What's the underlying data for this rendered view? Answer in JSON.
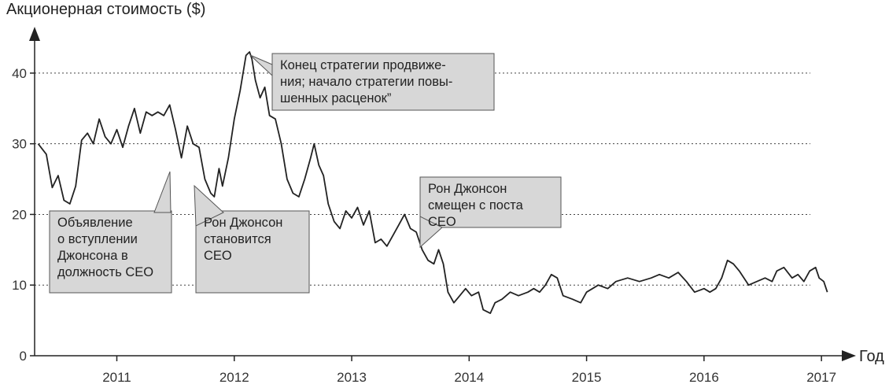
{
  "chart_data": {
    "type": "line",
    "ylabel": "Акционерная стоимость ($)",
    "xlabel": "Год",
    "xlim": [
      2010.3,
      2017.2
    ],
    "ylim": [
      0,
      45
    ],
    "x_ticks": [
      2011,
      2012,
      2013,
      2014,
      2015,
      2016,
      2017
    ],
    "y_ticks": [
      0,
      10,
      20,
      30,
      40
    ],
    "grid": "horizontal-dotted",
    "series": [
      {
        "color": "#222222",
        "points": [
          [
            2010.33,
            30.0
          ],
          [
            2010.4,
            28.5
          ],
          [
            2010.45,
            23.8
          ],
          [
            2010.5,
            25.5
          ],
          [
            2010.55,
            22.0
          ],
          [
            2010.6,
            21.5
          ],
          [
            2010.65,
            24.0
          ],
          [
            2010.7,
            30.5
          ],
          [
            2010.75,
            31.5
          ],
          [
            2010.8,
            30.0
          ],
          [
            2010.85,
            33.5
          ],
          [
            2010.9,
            31.0
          ],
          [
            2010.95,
            30.0
          ],
          [
            2011.0,
            32.0
          ],
          [
            2011.05,
            29.5
          ],
          [
            2011.1,
            32.5
          ],
          [
            2011.15,
            35.0
          ],
          [
            2011.2,
            31.5
          ],
          [
            2011.25,
            34.5
          ],
          [
            2011.3,
            34.0
          ],
          [
            2011.35,
            34.5
          ],
          [
            2011.4,
            34.0
          ],
          [
            2011.45,
            35.5
          ],
          [
            2011.5,
            32.0
          ],
          [
            2011.55,
            28.0
          ],
          [
            2011.6,
            32.5
          ],
          [
            2011.65,
            30.0
          ],
          [
            2011.7,
            29.5
          ],
          [
            2011.75,
            25.0
          ],
          [
            2011.8,
            23.0
          ],
          [
            2011.83,
            22.5
          ],
          [
            2011.87,
            26.5
          ],
          [
            2011.9,
            24.0
          ],
          [
            2011.95,
            28.0
          ],
          [
            2012.0,
            33.5
          ],
          [
            2012.05,
            37.5
          ],
          [
            2012.08,
            40.5
          ],
          [
            2012.1,
            42.5
          ],
          [
            2012.13,
            43.0
          ],
          [
            2012.15,
            42.0
          ],
          [
            2012.18,
            39.0
          ],
          [
            2012.22,
            36.5
          ],
          [
            2012.26,
            38.0
          ],
          [
            2012.3,
            34.0
          ],
          [
            2012.35,
            33.5
          ],
          [
            2012.4,
            30.0
          ],
          [
            2012.45,
            25.0
          ],
          [
            2012.5,
            23.0
          ],
          [
            2012.55,
            22.5
          ],
          [
            2012.6,
            25.0
          ],
          [
            2012.65,
            28.0
          ],
          [
            2012.68,
            30.0
          ],
          [
            2012.72,
            27.0
          ],
          [
            2012.76,
            25.5
          ],
          [
            2012.8,
            21.5
          ],
          [
            2012.85,
            19.0
          ],
          [
            2012.9,
            18.0
          ],
          [
            2012.95,
            20.5
          ],
          [
            2013.0,
            19.5
          ],
          [
            2013.05,
            21.0
          ],
          [
            2013.1,
            18.5
          ],
          [
            2013.15,
            20.5
          ],
          [
            2013.2,
            16.0
          ],
          [
            2013.25,
            16.5
          ],
          [
            2013.3,
            15.5
          ],
          [
            2013.35,
            17.0
          ],
          [
            2013.4,
            18.5
          ],
          [
            2013.45,
            20.0
          ],
          [
            2013.5,
            18.0
          ],
          [
            2013.55,
            17.5
          ],
          [
            2013.6,
            15.0
          ],
          [
            2013.65,
            13.5
          ],
          [
            2013.7,
            13.0
          ],
          [
            2013.74,
            15.0
          ],
          [
            2013.78,
            13.0
          ],
          [
            2013.82,
            9.0
          ],
          [
            2013.87,
            7.5
          ],
          [
            2013.92,
            8.5
          ],
          [
            2013.97,
            9.5
          ],
          [
            2014.02,
            8.5
          ],
          [
            2014.08,
            9.0
          ],
          [
            2014.12,
            6.5
          ],
          [
            2014.18,
            6.0
          ],
          [
            2014.22,
            7.5
          ],
          [
            2014.28,
            8.0
          ],
          [
            2014.35,
            9.0
          ],
          [
            2014.42,
            8.5
          ],
          [
            2014.5,
            9.0
          ],
          [
            2014.55,
            9.5
          ],
          [
            2014.6,
            9.0
          ],
          [
            2014.65,
            10.0
          ],
          [
            2014.7,
            11.5
          ],
          [
            2014.75,
            11.0
          ],
          [
            2014.8,
            8.5
          ],
          [
            2014.88,
            8.0
          ],
          [
            2014.95,
            7.5
          ],
          [
            2015.0,
            9.0
          ],
          [
            2015.05,
            9.5
          ],
          [
            2015.1,
            10.0
          ],
          [
            2015.18,
            9.5
          ],
          [
            2015.25,
            10.5
          ],
          [
            2015.35,
            11.0
          ],
          [
            2015.45,
            10.5
          ],
          [
            2015.55,
            11.0
          ],
          [
            2015.62,
            11.5
          ],
          [
            2015.7,
            11.0
          ],
          [
            2015.78,
            11.8
          ],
          [
            2015.85,
            10.5
          ],
          [
            2015.92,
            9.0
          ],
          [
            2016.0,
            9.5
          ],
          [
            2016.05,
            9.0
          ],
          [
            2016.1,
            9.5
          ],
          [
            2016.15,
            11.0
          ],
          [
            2016.2,
            13.5
          ],
          [
            2016.25,
            13.0
          ],
          [
            2016.3,
            12.0
          ],
          [
            2016.38,
            10.0
          ],
          [
            2016.45,
            10.5
          ],
          [
            2016.52,
            11.0
          ],
          [
            2016.58,
            10.5
          ],
          [
            2016.62,
            12.0
          ],
          [
            2016.68,
            12.5
          ],
          [
            2016.75,
            11.0
          ],
          [
            2016.8,
            11.5
          ],
          [
            2016.85,
            10.5
          ],
          [
            2016.9,
            12.0
          ],
          [
            2016.95,
            12.5
          ],
          [
            2016.98,
            11.0
          ],
          [
            2017.02,
            10.5
          ],
          [
            2017.05,
            9.0
          ]
        ]
      }
    ],
    "annotations": [
      {
        "lines": [
          "Конец стратегии продвиже-",
          "ния; начало стратегии повы-",
          "шенных расценок”"
        ]
      },
      {
        "lines": [
          "Объявление",
          "о вступлении",
          "Джонсона в",
          "должность CEO"
        ]
      },
      {
        "lines": [
          "Рон Джонсон",
          "становится",
          "CEO"
        ]
      },
      {
        "lines": [
          "Рон Джонсон",
          "смещен с поста",
          "CEO"
        ]
      }
    ]
  }
}
